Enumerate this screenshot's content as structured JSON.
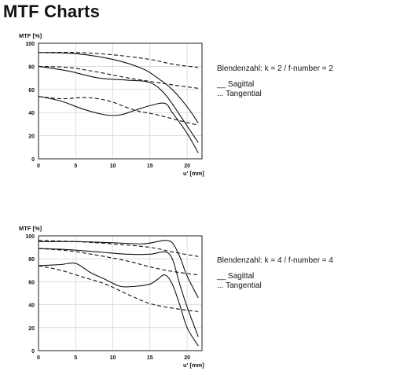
{
  "page": {
    "title": "MTF Charts"
  },
  "chart_data": [
    {
      "type": "line",
      "title": "",
      "ylabel": "MTF [%]",
      "xlabel": "u' [mm]",
      "xlim": [
        0,
        22
      ],
      "ylim": [
        0,
        100
      ],
      "xticks": [
        "0",
        "5",
        "10",
        "15",
        "20"
      ],
      "yticks": [
        "0",
        "20",
        "40",
        "60",
        "80",
        "100"
      ],
      "grid": true,
      "aperture_text": "Blendenzahl: k = 2 / f-number = 2",
      "legend": [
        {
          "symbol": "__",
          "label": "Sagittal",
          "style": "solid"
        },
        {
          "symbol": "...",
          "label": "Tangential",
          "style": "dashed"
        }
      ],
      "series": [
        {
          "style": "solid",
          "x": [
            0,
            5,
            10,
            14,
            16,
            18,
            20,
            21.5
          ],
          "y": [
            92,
            91,
            86,
            78,
            70,
            60,
            45,
            31
          ]
        },
        {
          "style": "solid",
          "x": [
            0,
            4,
            8,
            12,
            15,
            17,
            19,
            21.5
          ],
          "y": [
            80,
            76,
            70,
            68,
            66,
            56,
            38,
            14
          ]
        },
        {
          "style": "solid",
          "x": [
            0,
            3,
            6,
            9,
            11,
            13,
            15,
            17,
            18,
            20,
            21.5
          ],
          "y": [
            54,
            50,
            43,
            38,
            38,
            42,
            46,
            48,
            40,
            22,
            5
          ]
        },
        {
          "style": "dashed",
          "x": [
            0,
            5,
            10,
            15,
            18,
            21.5
          ],
          "y": [
            92,
            92,
            90,
            86,
            82,
            79
          ]
        },
        {
          "style": "dashed",
          "x": [
            0,
            4,
            8,
            12,
            15,
            18,
            21.5
          ],
          "y": [
            80,
            79,
            75,
            70,
            67,
            64,
            61
          ]
        },
        {
          "style": "dashed",
          "x": [
            0,
            3,
            6,
            8,
            10,
            13,
            16,
            19,
            21.5
          ],
          "y": [
            54,
            52,
            53,
            52,
            49,
            42,
            38,
            33,
            29
          ]
        }
      ]
    },
    {
      "type": "line",
      "title": "",
      "ylabel": "MTF [%]",
      "xlabel": "u' [mm]",
      "xlim": [
        0,
        22
      ],
      "ylim": [
        0,
        100
      ],
      "xticks": [
        "0",
        "5",
        "10",
        "15",
        "20"
      ],
      "yticks": [
        "0",
        "20",
        "40",
        "60",
        "80",
        "100"
      ],
      "grid": true,
      "aperture_text": "Blendenzahl: k = 4 / f-number = 4",
      "legend": [
        {
          "symbol": "__",
          "label": "Sagittal",
          "style": "solid"
        },
        {
          "symbol": "...",
          "label": "Tangential",
          "style": "dashed"
        }
      ],
      "series": [
        {
          "style": "solid",
          "x": [
            0,
            5,
            10,
            14,
            16,
            17,
            18,
            19,
            20,
            21.5
          ],
          "y": [
            95,
            95,
            94,
            93,
            95,
            96,
            94,
            82,
            65,
            46
          ]
        },
        {
          "style": "solid",
          "x": [
            0,
            4,
            8,
            12,
            15,
            17,
            18,
            19,
            20,
            21.5
          ],
          "y": [
            89,
            88,
            86,
            84,
            84,
            86,
            80,
            58,
            38,
            12
          ]
        },
        {
          "style": "solid",
          "x": [
            0,
            3,
            5,
            7,
            9,
            11,
            13,
            15,
            16,
            17,
            18,
            19,
            20,
            21.5
          ],
          "y": [
            74,
            75,
            76,
            68,
            62,
            56,
            56,
            58,
            62,
            66,
            58,
            40,
            20,
            4
          ]
        },
        {
          "style": "dashed",
          "x": [
            0,
            5,
            10,
            15,
            18,
            21.5
          ],
          "y": [
            96,
            95,
            93,
            90,
            86,
            82
          ]
        },
        {
          "style": "dashed",
          "x": [
            0,
            4,
            8,
            12,
            15,
            18,
            21.5
          ],
          "y": [
            89,
            87,
            83,
            78,
            73,
            69,
            66
          ]
        },
        {
          "style": "dashed",
          "x": [
            0,
            3,
            6,
            9,
            12,
            15,
            18,
            21.5
          ],
          "y": [
            74,
            70,
            64,
            58,
            49,
            41,
            37,
            34
          ]
        }
      ]
    }
  ]
}
